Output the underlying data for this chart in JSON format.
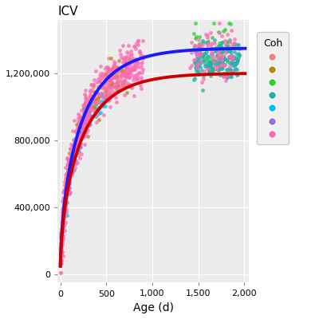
{
  "title": "ICV",
  "xlabel": "Age (d)",
  "ylabel": "",
  "xlim": [
    -30,
    2050
  ],
  "ylim": [
    -50000,
    1520000
  ],
  "yticks": [
    0,
    400000,
    800000,
    1200000
  ],
  "ytick_labels": [
    "0",
    "400,000",
    "800,000",
    "1,200,000"
  ],
  "xticks": [
    0,
    500,
    1000,
    1500,
    2000
  ],
  "xtick_labels": [
    "0",
    "500",
    "1,000",
    "1,500",
    "2,000"
  ],
  "bg_color": "#EBEBEB",
  "grid_color": "#FFFFFF",
  "blue_line_color": "#1a1aff",
  "red_line_color": "#cc0000",
  "legend_title": "Coh",
  "point_size": 12,
  "point_alpha": 0.75,
  "line_width": 2.8,
  "cohort_colors": [
    "#F08080",
    "#B8860B",
    "#32CD32",
    "#20B2AA",
    "#00BFFF",
    "#9370DB",
    "#FF69B4"
  ]
}
